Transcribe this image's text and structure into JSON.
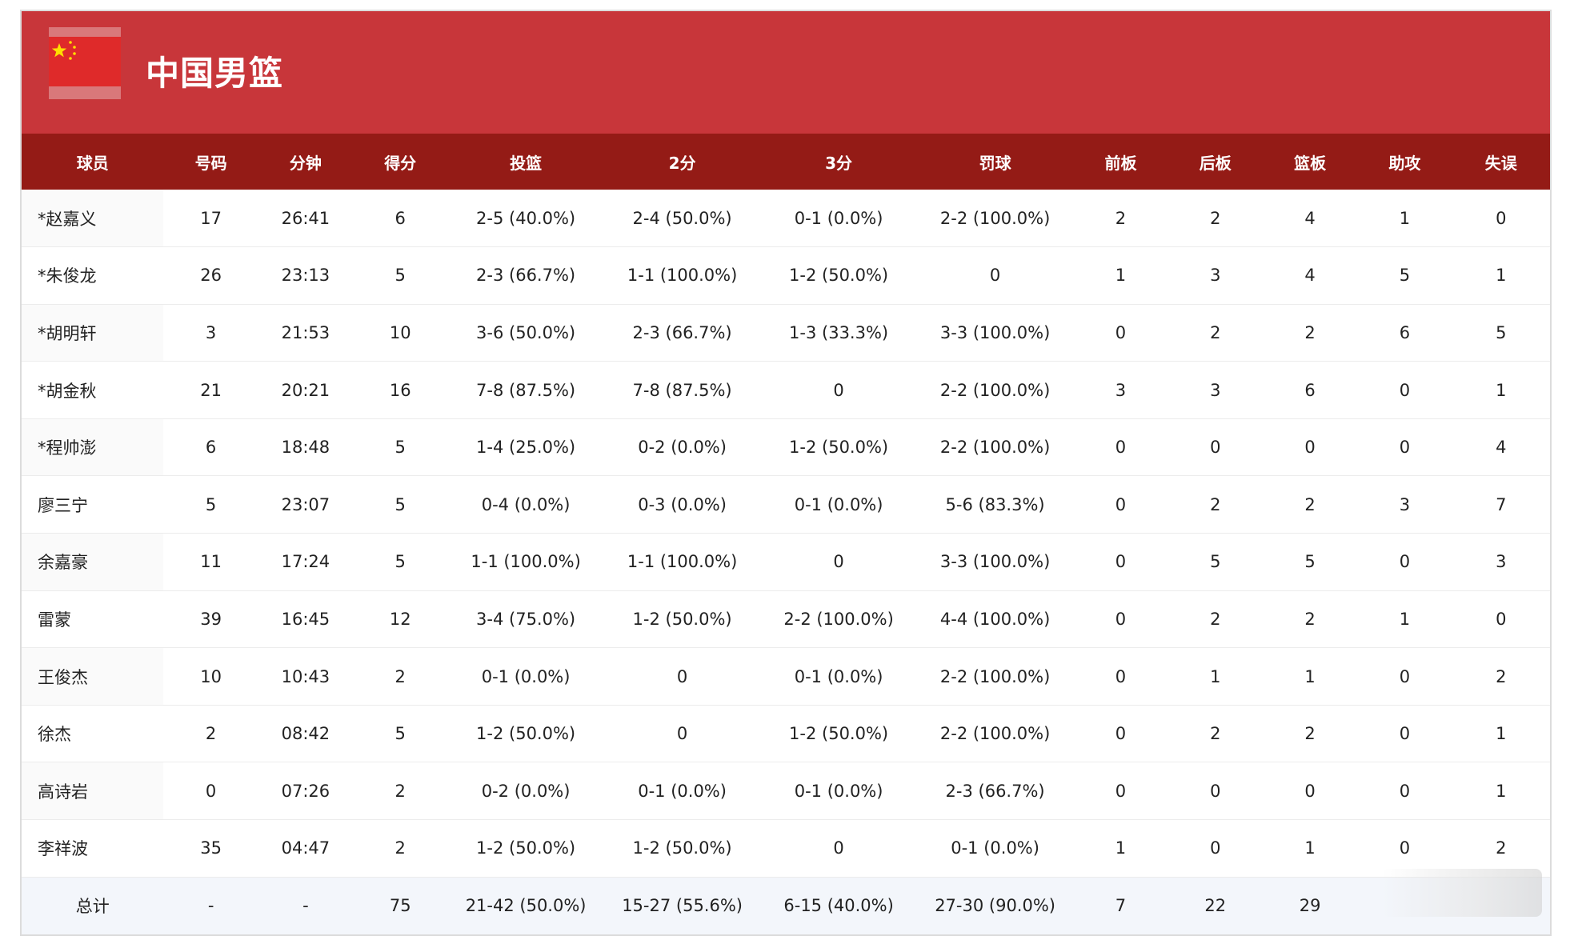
{
  "team": {
    "name": "中国男篮",
    "flag_icon": "china-flag-icon",
    "header_color": "#c8363a",
    "table_header_color": "#941b16"
  },
  "columns": [
    "球员",
    "号码",
    "分钟",
    "得分",
    "投篮",
    "2分",
    "3分",
    "罚球",
    "前板",
    "后板",
    "篮板",
    "助攻",
    "失误"
  ],
  "players": [
    [
      "*赵嘉义",
      "17",
      "26:41",
      "6",
      "2-5 (40.0%)",
      "2-4 (50.0%)",
      "0-1 (0.0%)",
      "2-2 (100.0%)",
      "2",
      "2",
      "4",
      "1",
      "0"
    ],
    [
      "*朱俊龙",
      "26",
      "23:13",
      "5",
      "2-3 (66.7%)",
      "1-1 (100.0%)",
      "1-2 (50.0%)",
      "0",
      "1",
      "3",
      "4",
      "5",
      "1"
    ],
    [
      "*胡明轩",
      "3",
      "21:53",
      "10",
      "3-6 (50.0%)",
      "2-3 (66.7%)",
      "1-3 (33.3%)",
      "3-3 (100.0%)",
      "0",
      "2",
      "2",
      "6",
      "5"
    ],
    [
      "*胡金秋",
      "21",
      "20:21",
      "16",
      "7-8 (87.5%)",
      "7-8 (87.5%)",
      "0",
      "2-2 (100.0%)",
      "3",
      "3",
      "6",
      "0",
      "1"
    ],
    [
      "*程帅澎",
      "6",
      "18:48",
      "5",
      "1-4 (25.0%)",
      "0-2 (0.0%)",
      "1-2 (50.0%)",
      "2-2 (100.0%)",
      "0",
      "0",
      "0",
      "0",
      "4"
    ],
    [
      "廖三宁",
      "5",
      "23:07",
      "5",
      "0-4 (0.0%)",
      "0-3 (0.0%)",
      "0-1 (0.0%)",
      "5-6 (83.3%)",
      "0",
      "2",
      "2",
      "3",
      "7"
    ],
    [
      "余嘉豪",
      "11",
      "17:24",
      "5",
      "1-1 (100.0%)",
      "1-1 (100.0%)",
      "0",
      "3-3 (100.0%)",
      "0",
      "5",
      "5",
      "0",
      "3"
    ],
    [
      "雷蒙",
      "39",
      "16:45",
      "12",
      "3-4 (75.0%)",
      "1-2 (50.0%)",
      "2-2 (100.0%)",
      "4-4 (100.0%)",
      "0",
      "2",
      "2",
      "1",
      "0"
    ],
    [
      "王俊杰",
      "10",
      "10:43",
      "2",
      "0-1 (0.0%)",
      "0",
      "0-1 (0.0%)",
      "2-2 (100.0%)",
      "0",
      "1",
      "1",
      "0",
      "2"
    ],
    [
      "徐杰",
      "2",
      "08:42",
      "5",
      "1-2 (50.0%)",
      "0",
      "1-2 (50.0%)",
      "2-2 (100.0%)",
      "0",
      "2",
      "2",
      "0",
      "1"
    ],
    [
      "高诗岩",
      "0",
      "07:26",
      "2",
      "0-2 (0.0%)",
      "0-1 (0.0%)",
      "0-1 (0.0%)",
      "2-3 (66.7%)",
      "0",
      "0",
      "0",
      "0",
      "1"
    ],
    [
      "李祥波",
      "35",
      "04:47",
      "2",
      "1-2 (50.0%)",
      "1-2 (50.0%)",
      "0",
      "0-1 (0.0%)",
      "1",
      "0",
      "1",
      "0",
      "2"
    ]
  ],
  "totals": [
    "总计",
    "-",
    "-",
    "75",
    "21-42 (50.0%)",
    "15-27 (55.6%)",
    "6-15 (40.0%)",
    "27-30 (90.0%)",
    "7",
    "22",
    "29",
    "",
    ""
  ]
}
